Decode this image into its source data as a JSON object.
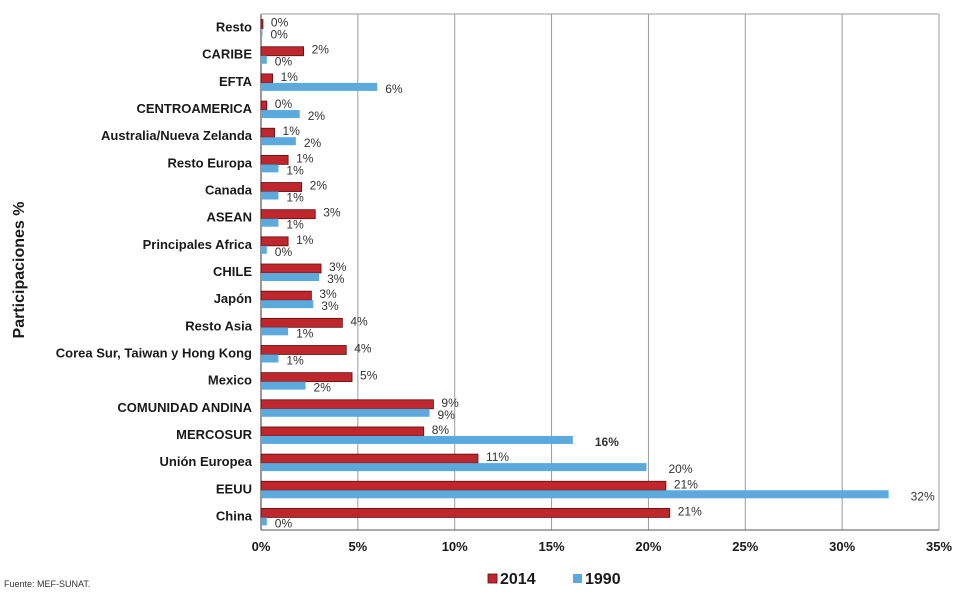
{
  "chart_data": {
    "type": "bar",
    "orientation": "horizontal",
    "ylabel": "Participaciones %",
    "xlabel": "",
    "xlim": [
      0,
      35
    ],
    "x_ticks": [
      "0%",
      "5%",
      "10%",
      "15%",
      "20%",
      "25%",
      "30%",
      "35%"
    ],
    "grid": "vertical",
    "legend_position": "bottom",
    "categories": [
      "Resto",
      "CARIBE",
      "EFTA",
      "CENTROAMERICA",
      "Australia/Nueva Zelanda",
      "Resto Europa",
      "Canada",
      "ASEAN",
      "Principales Africa",
      "CHILE",
      "Japón",
      "Resto Asia",
      "Corea Sur, Taiwan y Hong Kong",
      "Mexico",
      "COMUNIDAD ANDINA",
      "MERCOSUR",
      "Unión Europea",
      "EEUU",
      "China"
    ],
    "series": [
      {
        "name": "2014",
        "color": "#c0272d",
        "values": [
          0.1,
          2.2,
          0.6,
          0.3,
          0.7,
          1.4,
          2.1,
          2.8,
          1.4,
          3.1,
          2.6,
          4.2,
          4.4,
          4.7,
          8.9,
          8.4,
          11.2,
          20.9,
          21.1
        ],
        "labels": [
          "0%",
          "2%",
          "1%",
          "0%",
          "1%",
          "1%",
          "2%",
          "3%",
          "1%",
          "3%",
          "3%",
          "4%",
          "4%",
          "5%",
          "9%",
          "8%",
          "11%",
          "21%",
          "21%"
        ]
      },
      {
        "name": "1990",
        "color": "#5ba9dd",
        "values": [
          0.05,
          0.3,
          6.0,
          2.0,
          1.8,
          0.9,
          0.9,
          0.9,
          0.3,
          3.0,
          2.7,
          1.4,
          0.9,
          2.3,
          8.7,
          16.1,
          19.9,
          32.4,
          0.3
        ],
        "labels": [
          "0%",
          "0%",
          "6%",
          "2%",
          "2%",
          "1%",
          "1%",
          "1%",
          "0%",
          "3%",
          "3%",
          "1%",
          "1%",
          "2%",
          "9%",
          "16%",
          "20%",
          "32%",
          "0%"
        ]
      }
    ]
  },
  "source_note": "Fuente: MEF-SUNAT.",
  "legend": {
    "items": [
      {
        "label": "2014",
        "color": "#c0272d"
      },
      {
        "label": "1990",
        "color": "#5ba9dd"
      }
    ]
  }
}
